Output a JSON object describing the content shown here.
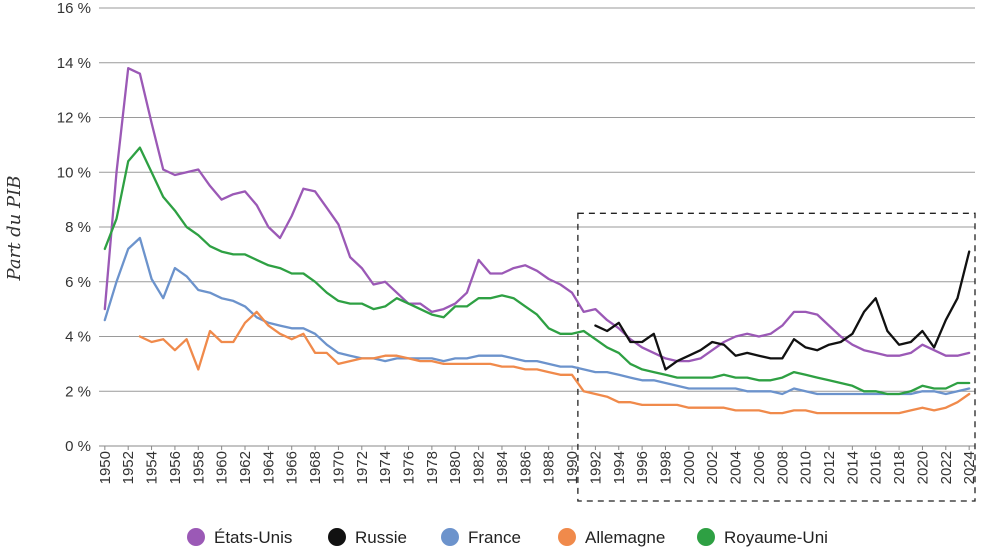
{
  "chart_data": {
    "type": "line",
    "title": "",
    "xlabel": "",
    "ylabel": "Part du PIB",
    "ylim": [
      0,
      16
    ],
    "yticks": [
      0,
      2,
      4,
      6,
      8,
      10,
      12,
      14,
      16
    ],
    "ytick_suffix": " %",
    "xlim": [
      1950,
      2024
    ],
    "xtick_step": 2,
    "grid": "horizontal",
    "legend_position": "bottom",
    "highlight_region": {
      "x_from": 1991,
      "x_to": 2025,
      "y_from": 0,
      "y_to": 8.5,
      "style": "dashed"
    },
    "series": [
      {
        "name": "États-Unis",
        "color": "#9b59b6",
        "x": [
          1950,
          1951,
          1952,
          1953,
          1954,
          1955,
          1956,
          1957,
          1958,
          1959,
          1960,
          1961,
          1962,
          1963,
          1964,
          1965,
          1966,
          1967,
          1968,
          1969,
          1970,
          1971,
          1972,
          1973,
          1974,
          1975,
          1976,
          1977,
          1978,
          1979,
          1980,
          1981,
          1982,
          1983,
          1984,
          1985,
          1986,
          1987,
          1988,
          1989,
          1990,
          1991,
          1992,
          1993,
          1994,
          1995,
          1996,
          1997,
          1998,
          1999,
          2000,
          2001,
          2002,
          2003,
          2004,
          2005,
          2006,
          2007,
          2008,
          2009,
          2010,
          2011,
          2012,
          2013,
          2014,
          2015,
          2016,
          2017,
          2018,
          2019,
          2020,
          2021,
          2022,
          2023,
          2024
        ],
        "y": [
          5.0,
          10.0,
          13.8,
          13.6,
          11.8,
          10.1,
          9.9,
          10.0,
          10.1,
          9.5,
          9.0,
          9.2,
          9.3,
          8.8,
          8.0,
          7.6,
          8.4,
          9.4,
          9.3,
          8.7,
          8.1,
          6.9,
          6.5,
          5.9,
          6.0,
          5.6,
          5.2,
          5.2,
          4.9,
          5.0,
          5.2,
          5.6,
          6.8,
          6.3,
          6.3,
          6.5,
          6.6,
          6.4,
          6.1,
          5.9,
          5.6,
          4.9,
          5.0,
          4.6,
          4.3,
          3.9,
          3.6,
          3.4,
          3.2,
          3.1,
          3.1,
          3.2,
          3.5,
          3.8,
          4.0,
          4.1,
          4.0,
          4.1,
          4.4,
          4.9,
          4.9,
          4.8,
          4.4,
          4.0,
          3.7,
          3.5,
          3.4,
          3.3,
          3.3,
          3.4,
          3.7,
          3.5,
          3.3,
          3.3,
          3.4
        ]
      },
      {
        "name": "Russie",
        "color": "#111111",
        "x": [
          1992,
          1993,
          1994,
          1995,
          1996,
          1997,
          1998,
          1999,
          2000,
          2001,
          2002,
          2003,
          2004,
          2005,
          2006,
          2007,
          2008,
          2009,
          2010,
          2011,
          2012,
          2013,
          2014,
          2015,
          2016,
          2017,
          2018,
          2019,
          2020,
          2021,
          2022,
          2023,
          2024
        ],
        "y": [
          4.4,
          4.2,
          4.5,
          3.8,
          3.8,
          4.1,
          2.8,
          3.1,
          3.3,
          3.5,
          3.8,
          3.7,
          3.3,
          3.4,
          3.3,
          3.2,
          3.2,
          3.9,
          3.6,
          3.5,
          3.7,
          3.8,
          4.1,
          4.9,
          5.4,
          4.2,
          3.7,
          3.8,
          4.2,
          3.6,
          4.6,
          5.4,
          7.1
        ]
      },
      {
        "name": "France",
        "color": "#6c93cc",
        "x": [
          1950,
          1951,
          1952,
          1953,
          1954,
          1955,
          1956,
          1957,
          1958,
          1959,
          1960,
          1961,
          1962,
          1963,
          1964,
          1965,
          1966,
          1967,
          1968,
          1969,
          1970,
          1971,
          1972,
          1973,
          1974,
          1975,
          1976,
          1977,
          1978,
          1979,
          1980,
          1981,
          1982,
          1983,
          1984,
          1985,
          1986,
          1987,
          1988,
          1989,
          1990,
          1991,
          1992,
          1993,
          1994,
          1995,
          1996,
          1997,
          1998,
          1999,
          2000,
          2001,
          2002,
          2003,
          2004,
          2005,
          2006,
          2007,
          2008,
          2009,
          2010,
          2011,
          2012,
          2013,
          2014,
          2015,
          2016,
          2017,
          2018,
          2019,
          2020,
          2021,
          2022,
          2023,
          2024
        ],
        "y": [
          4.6,
          6.0,
          7.2,
          7.6,
          6.1,
          5.4,
          6.5,
          6.2,
          5.7,
          5.6,
          5.4,
          5.3,
          5.1,
          4.7,
          4.5,
          4.4,
          4.3,
          4.3,
          4.1,
          3.7,
          3.4,
          3.3,
          3.2,
          3.2,
          3.1,
          3.2,
          3.2,
          3.2,
          3.2,
          3.1,
          3.2,
          3.2,
          3.3,
          3.3,
          3.3,
          3.2,
          3.1,
          3.1,
          3.0,
          2.9,
          2.9,
          2.8,
          2.7,
          2.7,
          2.6,
          2.5,
          2.4,
          2.4,
          2.3,
          2.2,
          2.1,
          2.1,
          2.1,
          2.1,
          2.1,
          2.0,
          2.0,
          2.0,
          1.9,
          2.1,
          2.0,
          1.9,
          1.9,
          1.9,
          1.9,
          1.9,
          1.9,
          1.9,
          1.9,
          1.9,
          2.0,
          2.0,
          1.9,
          2.0,
          2.1
        ]
      },
      {
        "name": "Allemagne",
        "color": "#f08a4b",
        "x": [
          1953,
          1954,
          1955,
          1956,
          1957,
          1958,
          1959,
          1960,
          1961,
          1962,
          1963,
          1964,
          1965,
          1966,
          1967,
          1968,
          1969,
          1970,
          1971,
          1972,
          1973,
          1974,
          1975,
          1976,
          1977,
          1978,
          1979,
          1980,
          1981,
          1982,
          1983,
          1984,
          1985,
          1986,
          1987,
          1988,
          1989,
          1990,
          1991,
          1992,
          1993,
          1994,
          1995,
          1996,
          1997,
          1998,
          1999,
          2000,
          2001,
          2002,
          2003,
          2004,
          2005,
          2006,
          2007,
          2008,
          2009,
          2010,
          2011,
          2012,
          2013,
          2014,
          2015,
          2016,
          2017,
          2018,
          2019,
          2020,
          2021,
          2022,
          2023,
          2024
        ],
        "y": [
          4.0,
          3.8,
          3.9,
          3.5,
          3.9,
          2.8,
          4.2,
          3.8,
          3.8,
          4.5,
          4.9,
          4.4,
          4.1,
          3.9,
          4.1,
          3.4,
          3.4,
          3.0,
          3.1,
          3.2,
          3.2,
          3.3,
          3.3,
          3.2,
          3.1,
          3.1,
          3.0,
          3.0,
          3.0,
          3.0,
          3.0,
          2.9,
          2.9,
          2.8,
          2.8,
          2.7,
          2.6,
          2.6,
          2.0,
          1.9,
          1.8,
          1.6,
          1.6,
          1.5,
          1.5,
          1.5,
          1.5,
          1.4,
          1.4,
          1.4,
          1.4,
          1.3,
          1.3,
          1.3,
          1.2,
          1.2,
          1.3,
          1.3,
          1.2,
          1.2,
          1.2,
          1.2,
          1.2,
          1.2,
          1.2,
          1.2,
          1.3,
          1.4,
          1.3,
          1.4,
          1.6,
          1.9
        ]
      },
      {
        "name": "Royaume-Uni",
        "color": "#2ea043",
        "x": [
          1950,
          1951,
          1952,
          1953,
          1954,
          1955,
          1956,
          1957,
          1958,
          1959,
          1960,
          1961,
          1962,
          1963,
          1964,
          1965,
          1966,
          1967,
          1968,
          1969,
          1970,
          1971,
          1972,
          1973,
          1974,
          1975,
          1976,
          1977,
          1978,
          1979,
          1980,
          1981,
          1982,
          1983,
          1984,
          1985,
          1986,
          1987,
          1988,
          1989,
          1990,
          1991,
          1992,
          1993,
          1994,
          1995,
          1996,
          1997,
          1998,
          1999,
          2000,
          2001,
          2002,
          2003,
          2004,
          2005,
          2006,
          2007,
          2008,
          2009,
          2010,
          2011,
          2012,
          2013,
          2014,
          2015,
          2016,
          2017,
          2018,
          2019,
          2020,
          2021,
          2022,
          2023,
          2024
        ],
        "y": [
          7.2,
          8.3,
          10.4,
          10.9,
          10.0,
          9.1,
          8.6,
          8.0,
          7.7,
          7.3,
          7.1,
          7.0,
          7.0,
          6.8,
          6.6,
          6.5,
          6.3,
          6.3,
          6.0,
          5.6,
          5.3,
          5.2,
          5.2,
          5.0,
          5.1,
          5.4,
          5.2,
          5.0,
          4.8,
          4.7,
          5.1,
          5.1,
          5.4,
          5.4,
          5.5,
          5.4,
          5.1,
          4.8,
          4.3,
          4.1,
          4.1,
          4.2,
          3.9,
          3.6,
          3.4,
          3.0,
          2.8,
          2.7,
          2.6,
          2.5,
          2.5,
          2.5,
          2.5,
          2.6,
          2.5,
          2.5,
          2.4,
          2.4,
          2.5,
          2.7,
          2.6,
          2.5,
          2.4,
          2.3,
          2.2,
          2.0,
          2.0,
          1.9,
          1.9,
          2.0,
          2.2,
          2.1,
          2.1,
          2.3,
          2.3
        ]
      }
    ]
  }
}
